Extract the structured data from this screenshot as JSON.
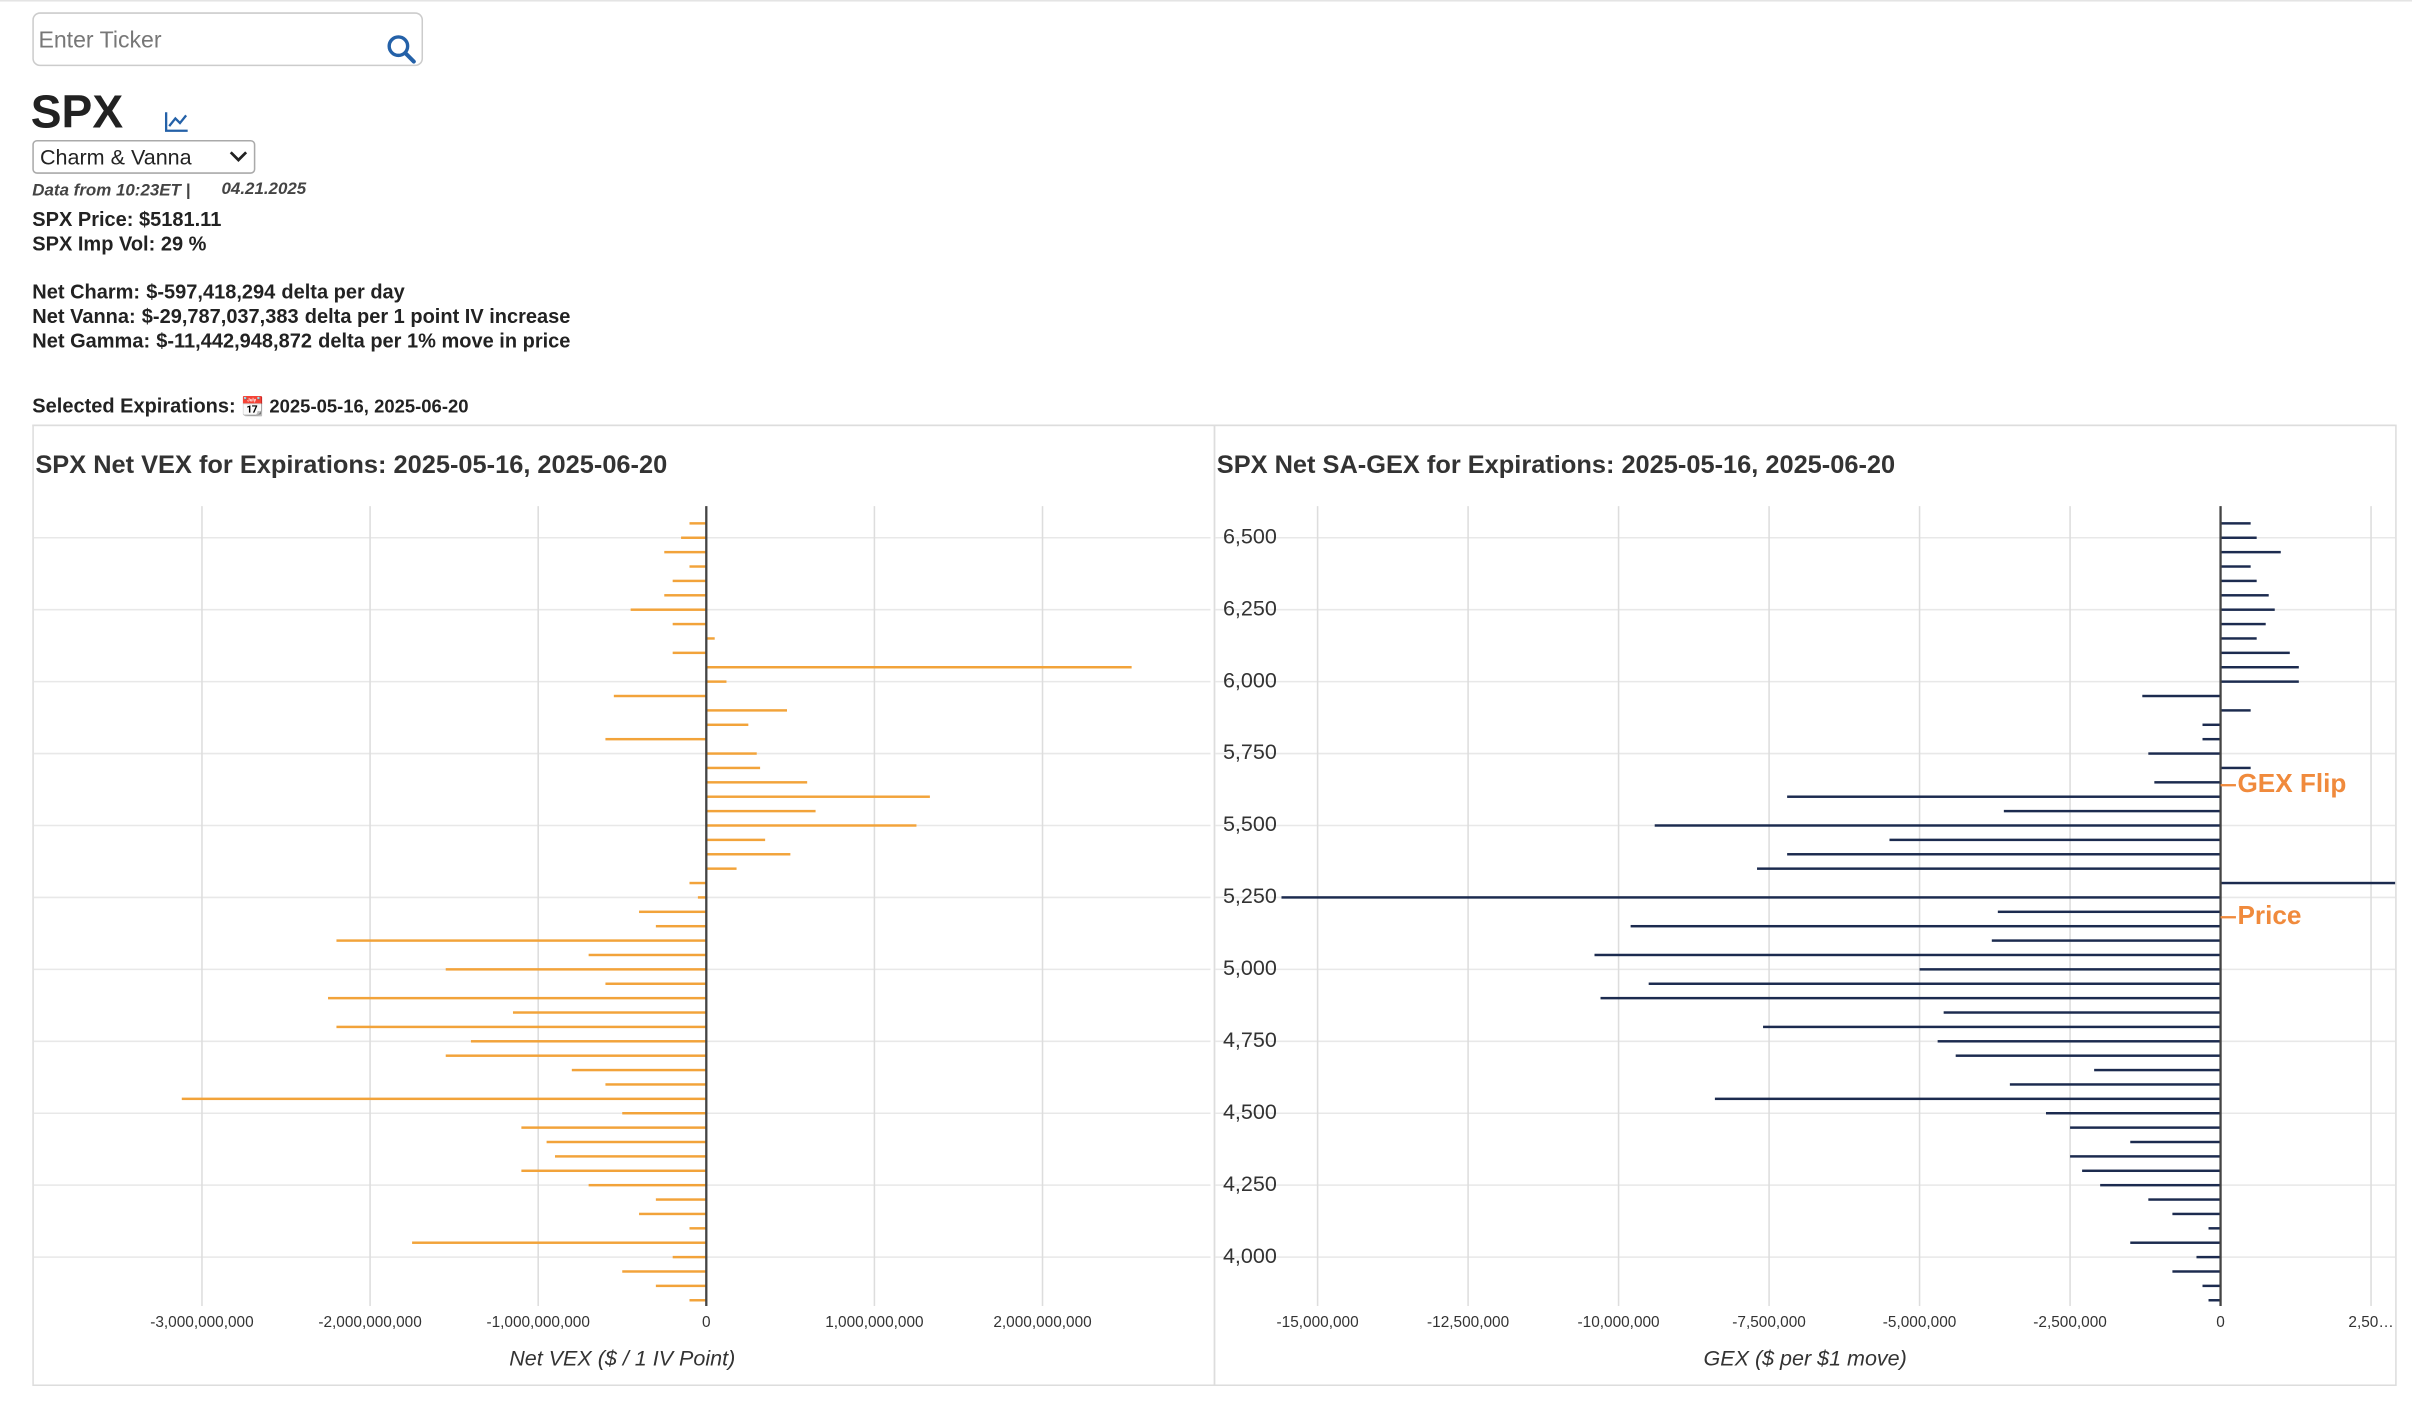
{
  "search": {
    "placeholder": "Enter Ticker"
  },
  "ticker": "SPX",
  "mode_select": "Charm & Vanna",
  "data_from": "Data from 10:23ET |",
  "data_date": "04.21.2025",
  "price_line": "SPX Price: $5181.11",
  "iv_line": "SPX Imp Vol: 29 %",
  "greeks": [
    {
      "label": "Net Charm:",
      "value": "$-597,418,294",
      "unit": "delta per day"
    },
    {
      "label": "Net Vanna:",
      "value": "$-29,787,037,383",
      "unit": "delta per 1 point IV increase"
    },
    {
      "label": "Net Gamma:",
      "value": "$-11,442,948,872",
      "unit": "delta per 1% move in price"
    }
  ],
  "expirations": {
    "label": "Selected Expirations:",
    "value": "📆 2025-05-16, 2025-06-20"
  },
  "chart_data": [
    {
      "type": "hbar",
      "title": "SPX Net VEX for Expirations: 2025-05-16, 2025-06-20",
      "x_label": "Net VEX ($ / 1 IV Point)",
      "color": "#f2a33a",
      "y": [
        6550,
        6500,
        6450,
        6400,
        6350,
        6300,
        6250,
        6200,
        6150,
        6100,
        6050,
        6000,
        5950,
        5900,
        5850,
        5800,
        5750,
        5700,
        5650,
        5600,
        5550,
        5500,
        5450,
        5400,
        5350,
        5300,
        5250,
        5200,
        5150,
        5100,
        5050,
        5000,
        4950,
        4900,
        4850,
        4800,
        4750,
        4700,
        4650,
        4600,
        4550,
        4500,
        4450,
        4400,
        4350,
        4300,
        4250,
        4200,
        4150,
        4100,
        4050,
        4000,
        3950,
        3900,
        3850
      ],
      "values": [
        -100000000,
        -150000000,
        -250000000,
        -100000000,
        -200000000,
        -250000000,
        -450000000,
        -200000000,
        50000000,
        -200000000,
        2530000000,
        120000000,
        -550000000,
        480000000,
        250000000,
        -600000000,
        300000000,
        320000000,
        600000000,
        1330000000,
        650000000,
        1250000000,
        350000000,
        500000000,
        180000000,
        -100000000,
        -50000000,
        -400000000,
        -300000000,
        -2200000000,
        -700000000,
        -1550000000,
        -600000000,
        -2250000000,
        -1150000000,
        -2200000000,
        -1400000000,
        -1550000000,
        -800000000,
        -600000000,
        -3120000000,
        -500000000,
        -1100000000,
        -950000000,
        -900000000,
        -1100000000,
        -700000000,
        -300000000,
        -400000000,
        -100000000,
        -1750000000,
        -200000000,
        -500000000,
        -300000000,
        -100000000
      ],
      "xlim": [
        -4000000000,
        3000000000
      ],
      "xticks": [
        {
          "value": -3000000000,
          "label": "-3,000,000,000"
        },
        {
          "value": -2000000000,
          "label": "-2,000,000,000"
        },
        {
          "value": -1000000000,
          "label": "-1,000,000,000"
        },
        0,
        {
          "value": 1000000000,
          "label": "1,000,000,000"
        },
        {
          "value": 2000000000,
          "label": "2,000,000,000"
        }
      ],
      "ylim": [
        3830,
        6610
      ],
      "yticks": [
        4000,
        4250,
        4500,
        4750,
        5000,
        5250,
        5500,
        5750,
        6000,
        6250,
        6500
      ],
      "show_ytick_labels": false,
      "grid": true
    },
    {
      "type": "hbar",
      "title": "SPX Net SA-GEX for Expirations: 2025-05-16, 2025-06-20",
      "x_label": "GEX ($ per $1 move)",
      "color": "#1c2b4f",
      "y": [
        6550,
        6500,
        6450,
        6400,
        6350,
        6300,
        6250,
        6200,
        6150,
        6100,
        6050,
        6000,
        5950,
        5900,
        5850,
        5800,
        5750,
        5700,
        5650,
        5600,
        5550,
        5500,
        5450,
        5400,
        5350,
        5300,
        5250,
        5200,
        5150,
        5100,
        5050,
        5000,
        4950,
        4900,
        4850,
        4800,
        4750,
        4700,
        4650,
        4600,
        4550,
        4500,
        4450,
        4400,
        4350,
        4300,
        4250,
        4200,
        4150,
        4100,
        4050,
        4000,
        3950,
        3900,
        3850
      ],
      "values": [
        500000,
        600000,
        1000000,
        500000,
        600000,
        800000,
        900000,
        750000,
        600000,
        1150000,
        1300000,
        1300000,
        -1300000,
        500000,
        -300000,
        -300000,
        -1200000,
        500000,
        -1100000,
        -7200000,
        -3600000,
        -9400000,
        -5500000,
        -7200000,
        -7700000,
        3000000,
        -15600000,
        -3700000,
        -9800000,
        -3800000,
        -10400000,
        -5000000,
        -9500000,
        -10300000,
        -4600000,
        -7600000,
        -4700000,
        -4400000,
        -2100000,
        -3500000,
        -8400000,
        -2900000,
        -2500000,
        -1500000,
        -2500000,
        -2300000,
        -2000000,
        -1200000,
        -800000,
        -200000,
        -1500000,
        -400000,
        -800000,
        -300000,
        -200000
      ],
      "xlim": [
        -16700000,
        2900000
      ],
      "xticks": [
        {
          "value": -15000000,
          "label": "-15,000,000"
        },
        {
          "value": -12500000,
          "label": "-12,500,000"
        },
        {
          "value": -10000000,
          "label": "-10,000,000"
        },
        {
          "value": -7500000,
          "label": "-7,500,000"
        },
        {
          "value": -5000000,
          "label": "-5,000,000"
        },
        {
          "value": -2500000,
          "label": "-2,500,000"
        },
        0,
        {
          "value": 2500000,
          "label": "2,50…"
        }
      ],
      "ylim": [
        3830,
        6610
      ],
      "yticks": [
        {
          "value": 4000,
          "label": "4,000"
        },
        {
          "value": 4250,
          "label": "4,250"
        },
        {
          "value": 4500,
          "label": "4,500"
        },
        {
          "value": 4750,
          "label": "4,750"
        },
        {
          "value": 5000,
          "label": "5,000"
        },
        {
          "value": 5250,
          "label": "5,250"
        },
        {
          "value": 5500,
          "label": "5,500"
        },
        {
          "value": 5750,
          "label": "5,750"
        },
        {
          "value": 6000,
          "label": "6,000"
        },
        {
          "value": 6250,
          "label": "6,250"
        },
        {
          "value": 6500,
          "label": "6,500"
        }
      ],
      "show_ytick_labels": true,
      "grid": true,
      "annotations": [
        {
          "text": "GEX Flip",
          "y": 5640,
          "color": "#f08a3c"
        },
        {
          "text": "Price",
          "y": 5181.11,
          "color": "#f08a3c"
        }
      ]
    }
  ]
}
